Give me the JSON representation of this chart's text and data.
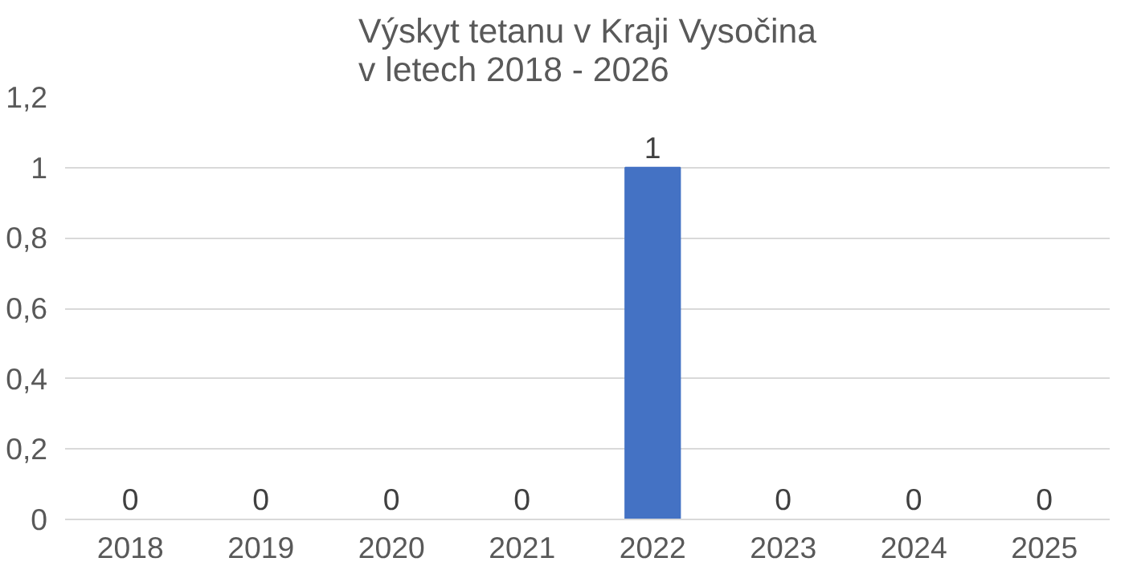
{
  "chart_data": {
    "type": "bar",
    "title": "Výskyt tetanu v Kraji Vysočina\nv letech 2018 - 2026",
    "categories": [
      "2018",
      "2019",
      "2020",
      "2021",
      "2022",
      "2023",
      "2024",
      "2025"
    ],
    "values": [
      0,
      0,
      0,
      0,
      1,
      0,
      0,
      0
    ],
    "color": "#4472c4",
    "ylim": [
      0,
      1.2
    ],
    "yticks": [
      0,
      {
        "value": 0.2,
        "label": "0,2"
      },
      {
        "value": 0.4,
        "label": "0,4"
      },
      {
        "value": 0.6,
        "label": "0,6"
      },
      {
        "value": 0.8,
        "label": "0,8"
      },
      1,
      {
        "value": 1.2,
        "label": "1,2"
      }
    ],
    "grid": "y",
    "data_labels": true
  }
}
